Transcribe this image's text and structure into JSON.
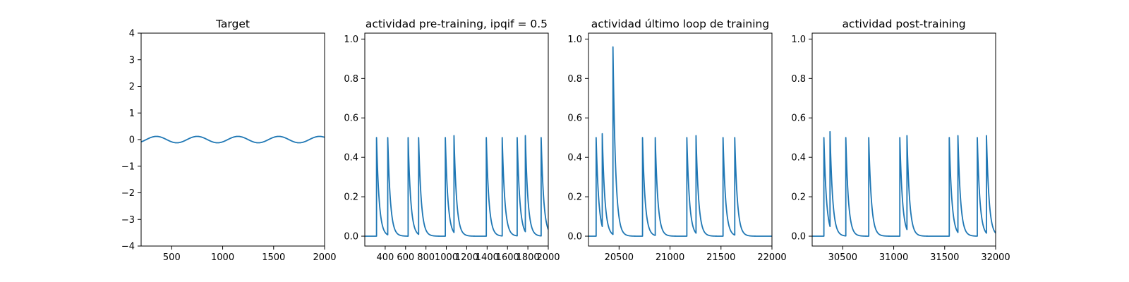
{
  "chart_data": [
    {
      "type": "line",
      "title": "Target",
      "xlim": [
        200,
        2000
      ],
      "ylim": [
        -4,
        4
      ],
      "xticks": [
        500,
        1000,
        1500,
        2000
      ],
      "xtick_labels": [
        "500",
        "1000",
        "1500",
        "2000"
      ],
      "yticks": [
        -4,
        -3,
        -2,
        -1,
        0,
        1,
        2,
        3,
        4
      ],
      "ytick_labels": [
        "−4",
        "−3",
        "−2",
        "−1",
        "0",
        "1",
        "2",
        "3",
        "4"
      ],
      "color": "#1f77b4",
      "series": [
        {
          "shape": "sine",
          "amplitude": 0.12,
          "period": 400,
          "peak_x": 350,
          "x_range": [
            200,
            2000
          ]
        }
      ]
    },
    {
      "type": "line",
      "title": "actividad pre-training, ipqif = 0.5",
      "xlim": [
        200,
        2000
      ],
      "ylim": [
        -0.05,
        1.03
      ],
      "xticks": [
        400,
        600,
        800,
        1000,
        1200,
        1400,
        1600,
        1800,
        2000
      ],
      "xtick_labels": [
        "400",
        "600",
        "800",
        "1000",
        "1200",
        "1400",
        "1600",
        "1800",
        "2000"
      ],
      "yticks": [
        0.0,
        0.2,
        0.4,
        0.6,
        0.8,
        1.0
      ],
      "ytick_labels": [
        "0.0",
        "0.2",
        "0.4",
        "0.6",
        "0.8",
        "1.0"
      ],
      "color": "#1f77b4",
      "series": [
        {
          "shape": "spikes",
          "decay": 26,
          "x_range": [
            200,
            2000
          ],
          "spikes": [
            {
              "x": 315,
              "y": 0.5
            },
            {
              "x": 425,
              "y": 0.5
            },
            {
              "x": 625,
              "y": 0.5
            },
            {
              "x": 728,
              "y": 0.5
            },
            {
              "x": 990,
              "y": 0.5
            },
            {
              "x": 1075,
              "y": 0.51
            },
            {
              "x": 1392,
              "y": 0.5
            },
            {
              "x": 1548,
              "y": 0.5
            },
            {
              "x": 1695,
              "y": 0.5
            },
            {
              "x": 1775,
              "y": 0.51
            },
            {
              "x": 1930,
              "y": 0.5
            }
          ]
        }
      ]
    },
    {
      "type": "line",
      "title": "actividad último loop de training",
      "xlim": [
        20200,
        22000
      ],
      "ylim": [
        -0.05,
        1.03
      ],
      "xticks": [
        20500,
        21000,
        21500,
        22000
      ],
      "xtick_labels": [
        "20500",
        "21000",
        "21500",
        "22000"
      ],
      "yticks": [
        0.0,
        0.2,
        0.4,
        0.6,
        0.8,
        1.0
      ],
      "ytick_labels": [
        "0.0",
        "0.2",
        "0.4",
        "0.6",
        "0.8",
        "1.0"
      ],
      "color": "#1f77b4",
      "series": [
        {
          "shape": "spikes",
          "decay": 26,
          "x_range": [
            20200,
            22000
          ],
          "spikes": [
            {
              "x": 20275,
              "y": 0.5
            },
            {
              "x": 20335,
              "y": 0.52
            },
            {
              "x": 20440,
              "y": 0.96
            },
            {
              "x": 20730,
              "y": 0.5
            },
            {
              "x": 20855,
              "y": 0.5
            },
            {
              "x": 21165,
              "y": 0.5
            },
            {
              "x": 21255,
              "y": 0.51
            },
            {
              "x": 21520,
              "y": 0.5
            },
            {
              "x": 21635,
              "y": 0.5
            }
          ]
        }
      ]
    },
    {
      "type": "line",
      "title": "actividad post-training",
      "xlim": [
        30200,
        32000
      ],
      "ylim": [
        -0.05,
        1.03
      ],
      "xticks": [
        30500,
        31000,
        31500,
        32000
      ],
      "xtick_labels": [
        "30500",
        "31000",
        "31500",
        "32000"
      ],
      "yticks": [
        0.0,
        0.2,
        0.4,
        0.6,
        0.8,
        1.0
      ],
      "ytick_labels": [
        "0.0",
        "0.2",
        "0.4",
        "0.6",
        "0.8",
        "1.0"
      ],
      "color": "#1f77b4",
      "series": [
        {
          "shape": "spikes",
          "decay": 26,
          "x_range": [
            30200,
            32000
          ],
          "spikes": [
            {
              "x": 30315,
              "y": 0.5
            },
            {
              "x": 30375,
              "y": 0.53
            },
            {
              "x": 30530,
              "y": 0.5
            },
            {
              "x": 30755,
              "y": 0.5
            },
            {
              "x": 31060,
              "y": 0.5
            },
            {
              "x": 31130,
              "y": 0.51
            },
            {
              "x": 31545,
              "y": 0.5
            },
            {
              "x": 31630,
              "y": 0.51
            },
            {
              "x": 31820,
              "y": 0.5
            },
            {
              "x": 31910,
              "y": 0.51
            }
          ]
        }
      ]
    }
  ]
}
